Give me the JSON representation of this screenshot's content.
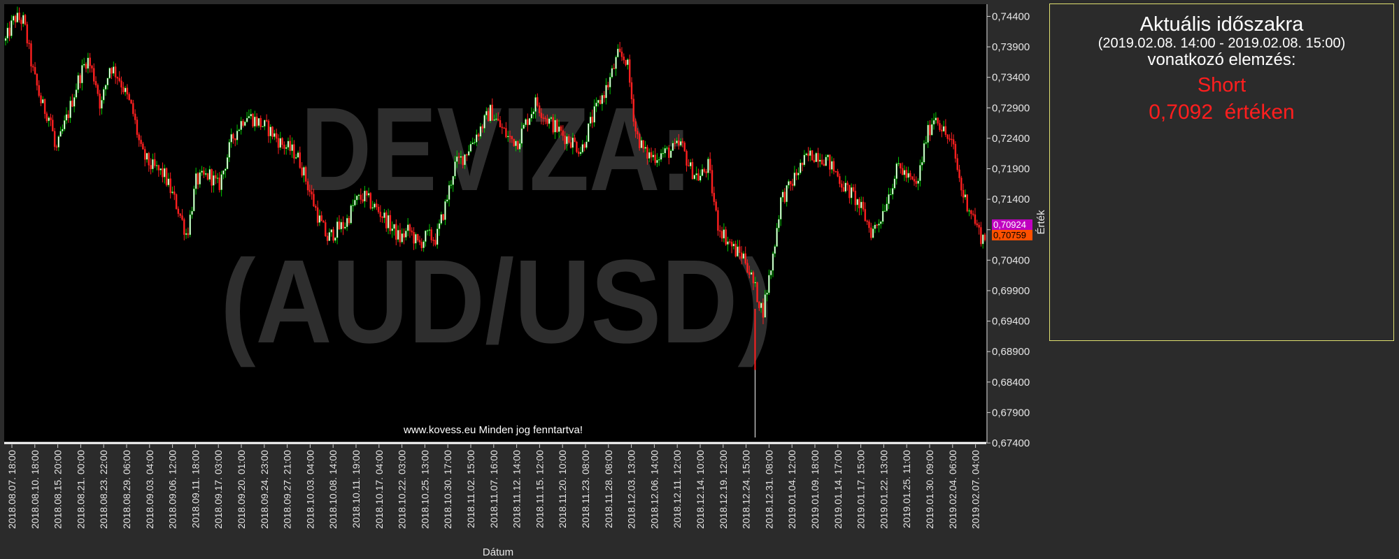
{
  "chart_data": {
    "type": "candlestick",
    "watermark": [
      "DEVIZA:",
      "(AUD/USD)"
    ],
    "copyright": "www.kovess.eu Minden jog fenntartva!",
    "xlabel": "Dátum",
    "ylabel": "Érték",
    "ylim": [
      0.674,
      0.746
    ],
    "y_ticks": [
      "0,74400",
      "0,73900",
      "0,73400",
      "0,72900",
      "0,72400",
      "0,71900",
      "0,71400",
      "0,70900",
      "0,70400",
      "0,69900",
      "0,69400",
      "0,68900",
      "0,68400",
      "0,67900",
      "0,67400"
    ],
    "y_tick_values": [
      0.744,
      0.739,
      0.734,
      0.729,
      0.724,
      0.719,
      0.714,
      0.709,
      0.704,
      0.699,
      0.694,
      0.689,
      0.684,
      0.679,
      0.674
    ],
    "x_ticks": [
      "2018.08.07. 18:00",
      "2018.08.10. 18:00",
      "2018.08.15. 20:00",
      "2018.08.21. 00:00",
      "2018.08.23. 22:00",
      "2018.08.29. 06:00",
      "2018.09.03. 04:00",
      "2018.09.06. 12:00",
      "2018.09.11. 18:00",
      "2018.09.17. 03:00",
      "2018.09.20. 01:00",
      "2018.09.24. 23:00",
      "2018.09.27. 21:00",
      "2018.10.03. 04:00",
      "2018.10.08. 14:00",
      "2018.10.11. 19:00",
      "2018.10.17. 04:00",
      "2018.10.22. 03:00",
      "2018.10.25. 13:00",
      "2018.10.30. 17:00",
      "2018.11.02. 15:00",
      "2018.11.07. 16:00",
      "2018.11.12. 14:00",
      "2018.11.15. 12:00",
      "2018.11.20. 10:00",
      "2018.11.23. 08:00",
      "2018.11.28. 08:00",
      "2018.12.03. 13:00",
      "2018.12.06. 14:00",
      "2018.12.11. 12:00",
      "2018.12.14. 10:00",
      "2018.12.19. 12:00",
      "2018.12.24. 15:00",
      "2018.12.31. 08:00",
      "2019.01.04. 12:00",
      "2019.01.09. 18:00",
      "2019.01.14. 17:00",
      "2019.01.17. 15:00",
      "2019.01.22. 13:00",
      "2019.01.25. 11:00",
      "2019.01.30. 09:00",
      "2019.02.04. 06:00",
      "2019.02.07. 04:00"
    ],
    "price_path": [
      [
        0,
        0.74
      ],
      [
        2,
        0.7438
      ],
      [
        4,
        0.7432
      ],
      [
        6,
        0.735
      ],
      [
        8,
        0.7295
      ],
      [
        10,
        0.727
      ],
      [
        11,
        0.7215
      ],
      [
        14,
        0.7285
      ],
      [
        16,
        0.7335
      ],
      [
        18,
        0.7372
      ],
      [
        20,
        0.733
      ],
      [
        21,
        0.729
      ],
      [
        23,
        0.736
      ],
      [
        25,
        0.734
      ],
      [
        28,
        0.7285
      ],
      [
        30,
        0.7215
      ],
      [
        32,
        0.7195
      ],
      [
        35,
        0.718
      ],
      [
        38,
        0.7125
      ],
      [
        40,
        0.708
      ],
      [
        42,
        0.717
      ],
      [
        45,
        0.718
      ],
      [
        47,
        0.716
      ],
      [
        50,
        0.724
      ],
      [
        53,
        0.728
      ],
      [
        55,
        0.727
      ],
      [
        58,
        0.7255
      ],
      [
        61,
        0.723
      ],
      [
        64,
        0.7215
      ],
      [
        65,
        0.72
      ],
      [
        67,
        0.7155
      ],
      [
        69,
        0.711
      ],
      [
        71,
        0.7075
      ],
      [
        73,
        0.709
      ],
      [
        75,
        0.71
      ],
      [
        77,
        0.7135
      ],
      [
        79,
        0.7145
      ],
      [
        81,
        0.713
      ],
      [
        83,
        0.7115
      ],
      [
        85,
        0.7095
      ],
      [
        87,
        0.7075
      ],
      [
        89,
        0.709
      ],
      [
        91,
        0.7065
      ],
      [
        93,
        0.708
      ],
      [
        95,
        0.7075
      ],
      [
        97,
        0.713
      ],
      [
        99,
        0.7195
      ],
      [
        101,
        0.721
      ],
      [
        103,
        0.7235
      ],
      [
        105,
        0.726
      ],
      [
        107,
        0.7285
      ],
      [
        109,
        0.726
      ],
      [
        111,
        0.724
      ],
      [
        113,
        0.7235
      ],
      [
        115,
        0.727
      ],
      [
        117,
        0.73
      ],
      [
        119,
        0.7275
      ],
      [
        121,
        0.726
      ],
      [
        123,
        0.7245
      ],
      [
        125,
        0.7235
      ],
      [
        127,
        0.722
      ],
      [
        129,
        0.7265
      ],
      [
        131,
        0.73
      ],
      [
        133,
        0.733
      ],
      [
        135,
        0.7375
      ],
      [
        137,
        0.737
      ],
      [
        139,
        0.725
      ],
      [
        141,
        0.7215
      ],
      [
        143,
        0.721
      ],
      [
        145,
        0.7215
      ],
      [
        147,
        0.722
      ],
      [
        149,
        0.723
      ],
      [
        151,
        0.719
      ],
      [
        153,
        0.7175
      ],
      [
        155,
        0.7195
      ],
      [
        157,
        0.71
      ],
      [
        159,
        0.7075
      ],
      [
        161,
        0.7055
      ],
      [
        163,
        0.7045
      ],
      [
        165,
        0.7
      ],
      [
        167,
        0.6955
      ],
      [
        169,
        0.7035
      ],
      [
        171,
        0.714
      ],
      [
        173,
        0.716
      ],
      [
        175,
        0.719
      ],
      [
        177,
        0.721
      ],
      [
        179,
        0.7215
      ],
      [
        181,
        0.7205
      ],
      [
        183,
        0.7185
      ],
      [
        185,
        0.716
      ],
      [
        187,
        0.7145
      ],
      [
        189,
        0.712
      ],
      [
        191,
        0.7085
      ],
      [
        193,
        0.711
      ],
      [
        195,
        0.7155
      ],
      [
        197,
        0.7195
      ],
      [
        199,
        0.7175
      ],
      [
        201,
        0.716
      ],
      [
        203,
        0.724
      ],
      [
        205,
        0.728
      ],
      [
        207,
        0.725
      ],
      [
        209,
        0.7225
      ],
      [
        211,
        0.715
      ],
      [
        213,
        0.712
      ],
      [
        215,
        0.708
      ],
      [
        216,
        0.7076
      ]
    ],
    "last_close_label": "0,70924",
    "last_low_label": "0,70759",
    "colors": {
      "up": "#00c800",
      "down": "#ff2020",
      "label_current": "#c000c0",
      "label_low": "#ff5000",
      "background": "#000000"
    }
  },
  "panel": {
    "title": "Aktuális időszakra",
    "range": "(2019.02.08. 14:00 - 2019.02.08. 15:00)",
    "subtitle": "vonatkozó elemzés:",
    "signal": "Short",
    "value_text": "0,7092  értéken"
  }
}
